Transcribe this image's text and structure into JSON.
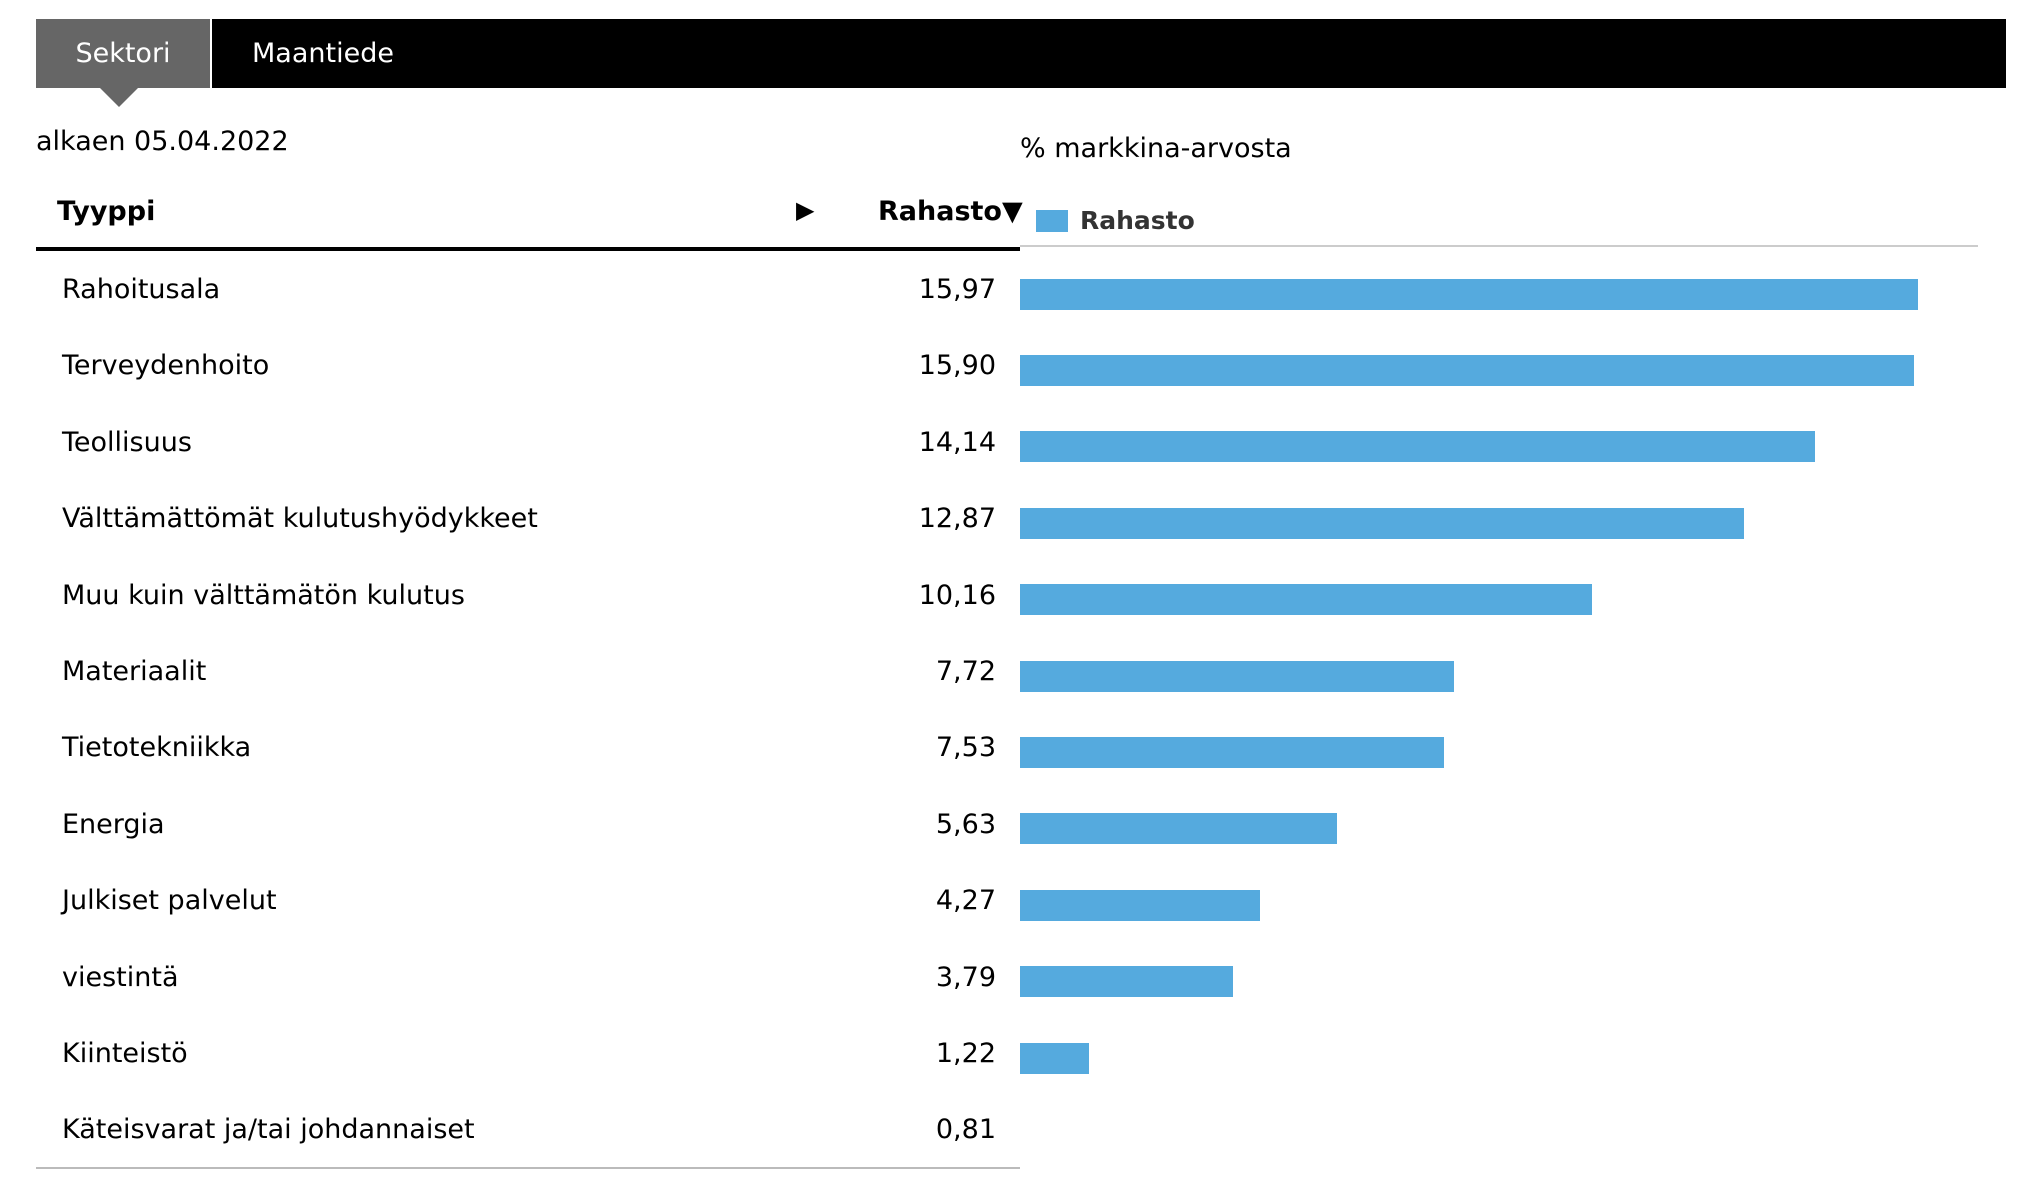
{
  "tabs": [
    {
      "label": "Sektori",
      "active": true
    },
    {
      "label": "Maantiede",
      "active": false
    }
  ],
  "as_of": "alkaen 05.04.2022",
  "unit_label": "% markkina-arvosta",
  "table": {
    "header_type": "Tyyppi",
    "header_expand_icon": "▶",
    "header_fund": "Rahasto▼"
  },
  "colors": {
    "bar": "#55aade",
    "tab_active": "#666666",
    "tab_bar": "#000000"
  },
  "chart_data": {
    "type": "bar",
    "orientation": "horizontal",
    "legend": "top-left",
    "series": [
      {
        "name": "Rahasto",
        "values": [
          15.97,
          15.9,
          14.14,
          12.87,
          10.16,
          7.72,
          7.53,
          5.63,
          4.27,
          3.79,
          1.22,
          0.81
        ]
      }
    ],
    "categories": [
      "Rahoitusala",
      "Terveydenhoito",
      "Teollisuus",
      "Välttämättömät kulutushyödykkeet",
      "Muu kuin välttämätön kulutus",
      "Materiaalit",
      "Tietotekniikka",
      "Energia",
      "Julkiset palvelut",
      "viestintä",
      "Kiinteistö",
      "Käteisvarat ja/tai johdannaiset"
    ],
    "value_labels": [
      "15,97",
      "15,90",
      "14,14",
      "12,87",
      "10,16",
      "7,72",
      "7,53",
      "5,63",
      "4,27",
      "3,79",
      "1,22",
      "0,81"
    ]
  }
}
